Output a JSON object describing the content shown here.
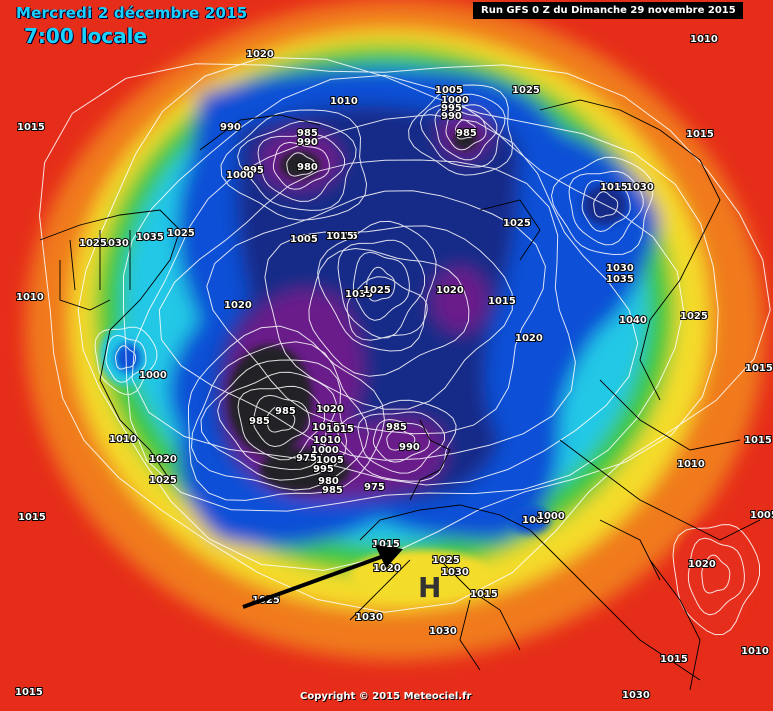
{
  "header": {
    "date": "Mercredi 2 décembre 2015",
    "time": "7:00 locale",
    "run": "Run GFS 0 Z du Dimanche 29 novembre 2015"
  },
  "footer": {
    "copyright": "Copyright © 2015 Meteociel.fr"
  },
  "map": {
    "type": "Northern hemisphere polar-stereographic pressure / geopotential map",
    "colors": {
      "ocean_far": "#e62d1a",
      "orange": "#f07a1e",
      "yellow": "#f4dc2c",
      "green": "#3cc83c",
      "cyan": "#22c8e6",
      "blue": "#1050d6",
      "navy": "#122a88",
      "purple": "#6a1a8a",
      "dark": "#232326",
      "isobar": "#ffffff",
      "borders": "#000000",
      "arrow": "#000000"
    },
    "isobar_labels": [
      "1020",
      "1010",
      "1005",
      "1000",
      "995",
      "990",
      "1025",
      "985",
      "1010",
      "1015",
      "990",
      "985",
      "990",
      "980",
      "995",
      "1000",
      "1015",
      "1010",
      "1015",
      "1025",
      "1030",
      "1035",
      "1025",
      "1005",
      "1015",
      "1025",
      "1030",
      "1035",
      "1015",
      "1030",
      "1035",
      "1025",
      "1020",
      "1020",
      "1015",
      "1020",
      "1040",
      "1025",
      "1015",
      "1000",
      "1010",
      "1020",
      "1025",
      "1015",
      "985",
      "985",
      "1020",
      "1015",
      "1010",
      "1000",
      "1005",
      "995",
      "975",
      "980",
      "985",
      "975",
      "985",
      "990",
      "1015",
      "1025",
      "1005",
      "1000",
      "1020",
      "1025",
      "1030",
      "1030",
      "1030",
      "1020",
      "1015",
      "1015",
      "1010",
      "1015",
      "1015",
      "1010",
      "1015",
      "1030",
      "1005"
    ],
    "high_marker": "H",
    "annotations": [
      "arrow pointing east-north-east toward the high-pressure centre"
    ]
  }
}
